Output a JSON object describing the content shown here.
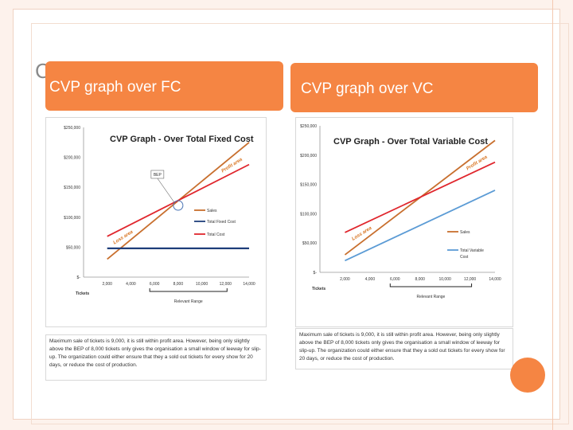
{
  "slide": {
    "peek_letter": "C",
    "left_header": "CVP graph over FC",
    "right_header": "CVP graph over VC",
    "accent_color": "#f58543"
  },
  "chart_data": [
    {
      "type": "line",
      "title": "CVP Graph - Over Total Fixed Cost",
      "xlabel": "Tickets",
      "x_ticks": [
        "2,000",
        "4,000",
        "6,000",
        "8,000",
        "10,000",
        "12,000",
        "14,000"
      ],
      "y_ticks": [
        "$-",
        "$50,000",
        "$100,000",
        "$150,000",
        "$200,000",
        "$250,000"
      ],
      "xlim": [
        0,
        14000
      ],
      "ylim": [
        0,
        250000
      ],
      "x": [
        2000,
        14000
      ],
      "series": [
        {
          "name": "Sales",
          "color": "#c86f2e",
          "values": [
            30000,
            225000
          ]
        },
        {
          "name": "Total Fixed Cost",
          "color": "#1f3e7a",
          "values": [
            48000,
            48000
          ]
        },
        {
          "name": "Total Cost",
          "color": "#e0262d",
          "values": [
            68000,
            188000
          ]
        }
      ],
      "annotations": {
        "bep_label": "BEP",
        "profit_label": "Profit area",
        "loss_label": "Loss area",
        "range_label": "Relevant Range"
      }
    },
    {
      "type": "line",
      "title": "CVP Graph - Over Total Variable Cost",
      "xlabel": "Tickets",
      "x_ticks": [
        "2,000",
        "4,000",
        "6,000",
        "8,000",
        "10,000",
        "12,000",
        "14,000"
      ],
      "y_ticks": [
        "$-",
        "$50,000",
        "$100,000",
        "$150,000",
        "$200,000",
        "$250,000"
      ],
      "xlim": [
        0,
        14000
      ],
      "ylim": [
        0,
        250000
      ],
      "x": [
        2000,
        14000
      ],
      "series": [
        {
          "name": "Sales",
          "color": "#c86f2e",
          "values": [
            30000,
            225000
          ]
        },
        {
          "name": "Total Variable Cost",
          "color": "#5b9bd5",
          "values": [
            20000,
            140000
          ]
        },
        {
          "name": "",
          "color": "#e0262d",
          "values": [
            68000,
            188000
          ]
        }
      ],
      "annotations": {
        "profit_label": "Profit area",
        "loss_label": "Loss area",
        "range_label": "Relevant Range"
      }
    }
  ],
  "captions": {
    "left": "Maximum sale of tickets is 9,000, it is still within profit area. However, being only slightly above the BEP of 8,000 tickets only gives the organisation a small window of leeway for slip-up. The organization could either ensure that they a sold out tickets for every show for 20 days, or reduce the cost of production.",
    "right": "Maximum sale of tickets is 9,000, it is still within profit area. However, being only slightly above the BEP of 8,000 tickets only gives the organisation a small window of leeway for slip-up. The organization could either ensure that they a sold out tickets for every show for 20 days, or reduce the cost of production."
  }
}
